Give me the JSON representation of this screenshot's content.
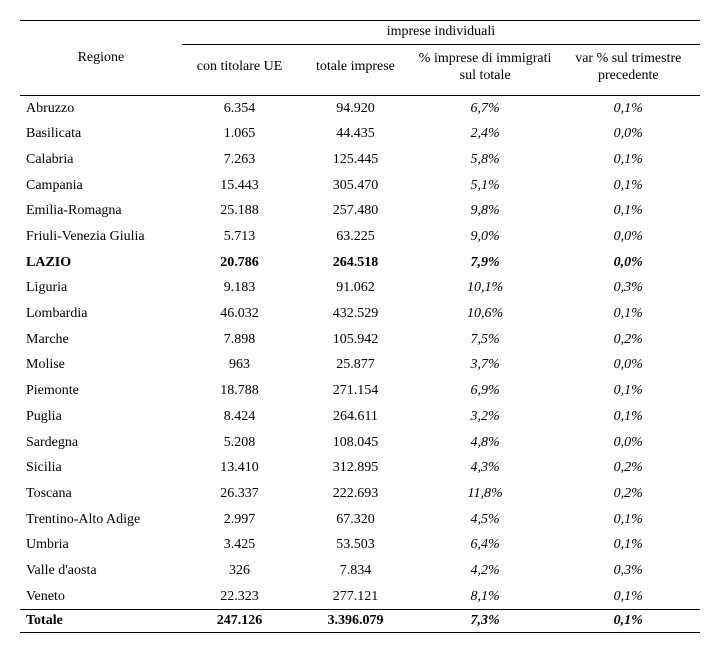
{
  "header": {
    "region_label": "Regione",
    "super_label": "imprese individuali",
    "col1": "con titolare UE",
    "col2": "totale imprese",
    "col3": "% imprese di immigrati sul totale",
    "col4": "var % sul trimestre precedente"
  },
  "rows": [
    {
      "region": "Abruzzo",
      "c1": "6.354",
      "c2": "94.920",
      "c3": "6,7%",
      "c4": "0,1%",
      "bold": false
    },
    {
      "region": "Basilicata",
      "c1": "1.065",
      "c2": "44.435",
      "c3": "2,4%",
      "c4": "0,0%",
      "bold": false
    },
    {
      "region": "Calabria",
      "c1": "7.263",
      "c2": "125.445",
      "c3": "5,8%",
      "c4": "0,1%",
      "bold": false
    },
    {
      "region": "Campania",
      "c1": "15.443",
      "c2": "305.470",
      "c3": "5,1%",
      "c4": "0,1%",
      "bold": false
    },
    {
      "region": "Emilia-Romagna",
      "c1": "25.188",
      "c2": "257.480",
      "c3": "9,8%",
      "c4": "0,1%",
      "bold": false
    },
    {
      "region": "Friuli-Venezia Giulia",
      "c1": "5.713",
      "c2": "63.225",
      "c3": "9,0%",
      "c4": "0,0%",
      "bold": false
    },
    {
      "region": "LAZIO",
      "c1": "20.786",
      "c2": "264.518",
      "c3": "7,9%",
      "c4": "0,0%",
      "bold": true
    },
    {
      "region": "Liguria",
      "c1": "9.183",
      "c2": "91.062",
      "c3": "10,1%",
      "c4": "0,3%",
      "bold": false
    },
    {
      "region": "Lombardia",
      "c1": "46.032",
      "c2": "432.529",
      "c3": "10,6%",
      "c4": "0,1%",
      "bold": false
    },
    {
      "region": "Marche",
      "c1": "7.898",
      "c2": "105.942",
      "c3": "7,5%",
      "c4": "0,2%",
      "bold": false
    },
    {
      "region": "Molise",
      "c1": "963",
      "c2": "25.877",
      "c3": "3,7%",
      "c4": "0,0%",
      "bold": false
    },
    {
      "region": "Piemonte",
      "c1": "18.788",
      "c2": "271.154",
      "c3": "6,9%",
      "c4": "0,1%",
      "bold": false
    },
    {
      "region": "Puglia",
      "c1": "8.424",
      "c2": "264.611",
      "c3": "3,2%",
      "c4": "0,1%",
      "bold": false
    },
    {
      "region": "Sardegna",
      "c1": "5.208",
      "c2": "108.045",
      "c3": "4,8%",
      "c4": "0,0%",
      "bold": false
    },
    {
      "region": "Sicilia",
      "c1": "13.410",
      "c2": "312.895",
      "c3": "4,3%",
      "c4": "0,2%",
      "bold": false
    },
    {
      "region": "Toscana",
      "c1": "26.337",
      "c2": "222.693",
      "c3": "11,8%",
      "c4": "0,2%",
      "bold": false
    },
    {
      "region": "Trentino-Alto Adige",
      "c1": "2.997",
      "c2": "67.320",
      "c3": "4,5%",
      "c4": "0,1%",
      "bold": false
    },
    {
      "region": "Umbria",
      "c1": "3.425",
      "c2": "53.503",
      "c3": "6,4%",
      "c4": "0,1%",
      "bold": false
    },
    {
      "region": "Valle d'aosta",
      "c1": "326",
      "c2": "7.834",
      "c3": "4,2%",
      "c4": "0,3%",
      "bold": false
    },
    {
      "region": "Veneto",
      "c1": "22.323",
      "c2": "277.121",
      "c3": "8,1%",
      "c4": "0,1%",
      "bold": false
    }
  ],
  "total": {
    "region": "Totale",
    "c1": "247.126",
    "c2": "3.396.079",
    "c3": "7,3%",
    "c4": "0,1%"
  }
}
